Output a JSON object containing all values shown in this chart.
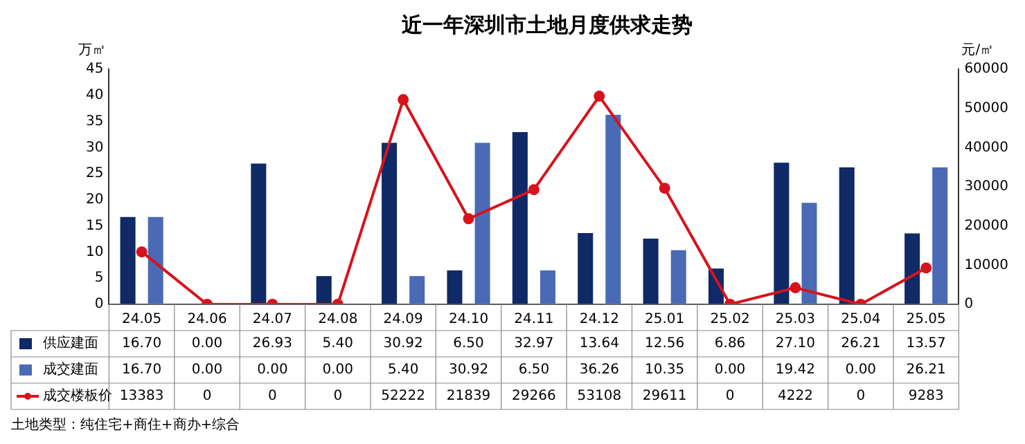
{
  "chart_data": {
    "type": "bar",
    "title": "近一年深圳市土地月度供求走势",
    "ylabel": "万㎡",
    "y2label": "元/㎡",
    "categories": [
      "24.05",
      "24.06",
      "24.07",
      "24.08",
      "24.09",
      "24.10",
      "24.11",
      "24.12",
      "25.01",
      "25.02",
      "25.03",
      "25.04",
      "25.05"
    ],
    "series": [
      {
        "name": "供应建面",
        "color": "#0f2a66",
        "values": [
          16.7,
          0.0,
          26.93,
          5.4,
          30.92,
          6.5,
          32.97,
          13.64,
          12.56,
          6.86,
          27.1,
          26.21,
          13.57
        ],
        "value_labels": [
          "16.70",
          "0.00",
          "26.93",
          "5.40",
          "30.92",
          "6.50",
          "32.97",
          "13.64",
          "12.56",
          "6.86",
          "27.10",
          "26.21",
          "13.57"
        ]
      },
      {
        "name": "成交建面",
        "color": "#4a6ab5",
        "values": [
          16.7,
          0.0,
          0.0,
          0.0,
          5.4,
          30.92,
          6.5,
          36.26,
          10.35,
          0.0,
          19.42,
          0.0,
          26.21
        ],
        "value_labels": [
          "16.70",
          "0.00",
          "0.00",
          "0.00",
          "5.40",
          "30.92",
          "6.50",
          "36.26",
          "10.35",
          "0.00",
          "19.42",
          "0.00",
          "26.21"
        ]
      },
      {
        "name": "成交楼板价",
        "type": "line",
        "axis": "y2",
        "color": "#d7131c",
        "marker": "circle",
        "values": [
          13383,
          0,
          0,
          0,
          52222,
          21839,
          29266,
          53108,
          29611,
          0,
          4222,
          0,
          9283
        ],
        "value_labels": [
          "13383",
          "0",
          "0",
          "0",
          "52222",
          "21839",
          "29266",
          "53108",
          "29611",
          "0",
          "4222",
          "0",
          "9283"
        ]
      }
    ],
    "ylim": [
      0,
      45
    ],
    "yticks": [
      0,
      5,
      10,
      15,
      20,
      25,
      30,
      35,
      40,
      45
    ],
    "y2lim": [
      0,
      60000
    ],
    "y2ticks": [
      0,
      10000,
      20000,
      30000,
      40000,
      50000,
      60000
    ],
    "grid": false,
    "legend": "bottom",
    "annotations": [
      "土地类型：纯住宅+商住+商办+综合"
    ]
  }
}
